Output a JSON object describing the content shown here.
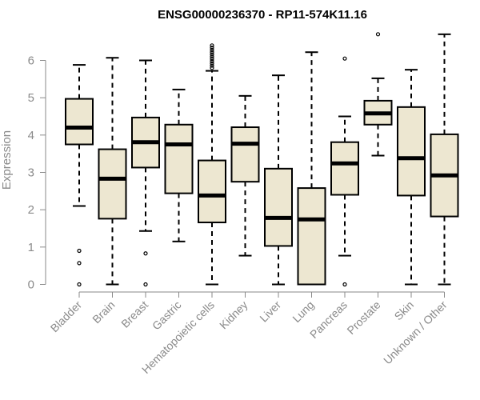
{
  "chart_data": {
    "type": "boxplot",
    "title": "ENSG00000236370 - RP11-574K11.16",
    "xlabel": "",
    "ylabel": "Expression",
    "ylim": [
      0,
      6.8
    ],
    "yticks": [
      0,
      1,
      2,
      3,
      4,
      5,
      6
    ],
    "box_fill": "#ede7d1",
    "box_stroke": "#000000",
    "categories": [
      "Bladder",
      "Brain",
      "Breast",
      "Gastric",
      "Hematopoietic cells",
      "Kidney",
      "Liver",
      "Lung",
      "Pancreas",
      "Prostate",
      "Skin",
      "Unknown / Other"
    ],
    "boxes": [
      {
        "category": "Bladder",
        "whisker_low": 2.1,
        "q1": 3.75,
        "median": 4.2,
        "q3": 4.97,
        "whisker_high": 5.88,
        "outliers": [
          0.9,
          0.57,
          0.0
        ]
      },
      {
        "category": "Brain",
        "whisker_low": 0.0,
        "q1": 1.76,
        "median": 2.83,
        "q3": 3.62,
        "whisker_high": 6.07,
        "outliers": []
      },
      {
        "category": "Breast",
        "whisker_low": 1.43,
        "q1": 3.13,
        "median": 3.81,
        "q3": 4.47,
        "whisker_high": 6.0,
        "outliers": [
          0.83,
          0.0
        ]
      },
      {
        "category": "Gastric",
        "whisker_low": 1.15,
        "q1": 2.44,
        "median": 3.75,
        "q3": 4.28,
        "whisker_high": 5.22,
        "outliers": []
      },
      {
        "category": "Hematopoietic cells",
        "whisker_low": 0.0,
        "q1": 1.66,
        "median": 2.38,
        "q3": 3.32,
        "whisker_high": 5.72,
        "outliers": [
          5.8,
          5.86,
          5.92,
          5.98,
          6.04,
          6.1,
          6.16,
          6.22,
          6.28,
          6.34,
          6.4
        ]
      },
      {
        "category": "Kidney",
        "whisker_low": 0.77,
        "q1": 2.75,
        "median": 3.77,
        "q3": 4.21,
        "whisker_high": 5.05,
        "outliers": []
      },
      {
        "category": "Liver",
        "whisker_low": 0.0,
        "q1": 1.03,
        "median": 1.78,
        "q3": 3.1,
        "whisker_high": 5.6,
        "outliers": []
      },
      {
        "category": "Lung",
        "whisker_low": 0.0,
        "q1": 0.0,
        "median": 1.74,
        "q3": 2.58,
        "whisker_high": 6.22,
        "outliers": []
      },
      {
        "category": "Pancreas",
        "whisker_low": 0.77,
        "q1": 2.4,
        "median": 3.24,
        "q3": 3.81,
        "whisker_high": 4.5,
        "outliers": [
          6.05,
          0.0
        ]
      },
      {
        "category": "Prostate",
        "whisker_low": 3.45,
        "q1": 4.28,
        "median": 4.58,
        "q3": 4.92,
        "whisker_high": 5.52,
        "outliers": [
          6.7
        ]
      },
      {
        "category": "Skin",
        "whisker_low": 0.0,
        "q1": 2.38,
        "median": 3.38,
        "q3": 4.75,
        "whisker_high": 5.75,
        "outliers": []
      },
      {
        "category": "Unknown / Other",
        "whisker_low": 0.0,
        "q1": 1.82,
        "median": 2.92,
        "q3": 4.02,
        "whisker_high": 6.7,
        "outliers": []
      }
    ]
  }
}
